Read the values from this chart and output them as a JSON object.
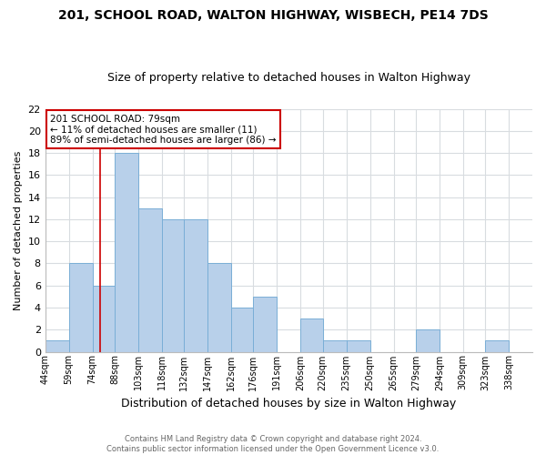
{
  "title": "201, SCHOOL ROAD, WALTON HIGHWAY, WISBECH, PE14 7DS",
  "subtitle": "Size of property relative to detached houses in Walton Highway",
  "xlabel": "Distribution of detached houses by size in Walton Highway",
  "ylabel": "Number of detached properties",
  "footer_line1": "Contains HM Land Registry data © Crown copyright and database right 2024.",
  "footer_line2": "Contains public sector information licensed under the Open Government Licence v3.0.",
  "bin_labels": [
    "44sqm",
    "59sqm",
    "74sqm",
    "88sqm",
    "103sqm",
    "118sqm",
    "132sqm",
    "147sqm",
    "162sqm",
    "176sqm",
    "191sqm",
    "206sqm",
    "220sqm",
    "235sqm",
    "250sqm",
    "265sqm",
    "279sqm",
    "294sqm",
    "309sqm",
    "323sqm",
    "338sqm"
  ],
  "bin_edges": [
    44,
    59,
    74,
    88,
    103,
    118,
    132,
    147,
    162,
    176,
    191,
    206,
    220,
    235,
    250,
    265,
    279,
    294,
    309,
    323,
    338,
    353
  ],
  "counts": [
    1,
    8,
    6,
    18,
    13,
    12,
    12,
    8,
    4,
    5,
    0,
    3,
    1,
    1,
    0,
    0,
    2,
    0,
    0,
    1,
    0
  ],
  "bar_color": "#b8d0ea",
  "bar_edgecolor": "#7aaed6",
  "vline_color": "#cc0000",
  "vline_x": 79,
  "annotation_title": "201 SCHOOL ROAD: 79sqm",
  "annotation_line1": "← 11% of detached houses are smaller (11)",
  "annotation_line2": "89% of semi-detached houses are larger (86) →",
  "annotation_box_edgecolor": "#cc0000",
  "ylim": [
    0,
    22
  ],
  "yticks": [
    0,
    2,
    4,
    6,
    8,
    10,
    12,
    14,
    16,
    18,
    20,
    22
  ],
  "grid_color": "#d8dce0",
  "background_color": "#ffffff",
  "title_fontsize": 10,
  "subtitle_fontsize": 9
}
